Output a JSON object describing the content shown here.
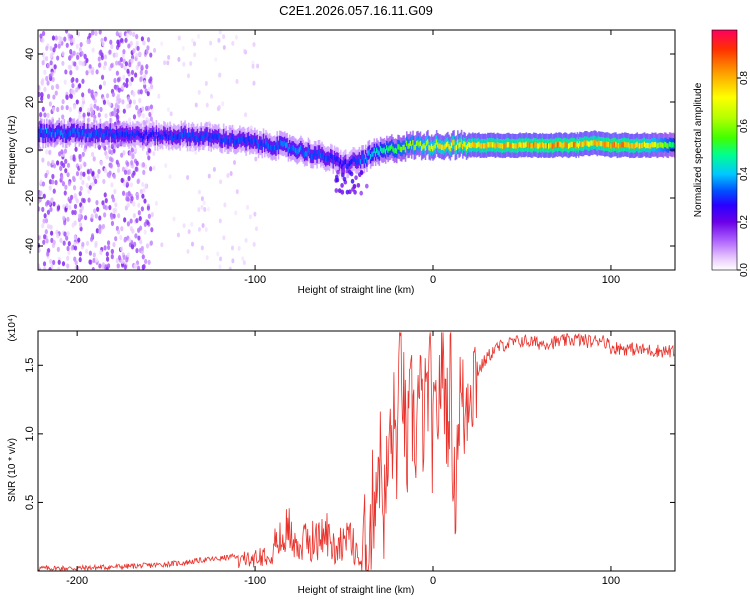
{
  "title": "C2E1.2026.057.16.11.G09",
  "chart_data": [
    {
      "type": "heatmap",
      "xlabel": "Height of straight line (km)",
      "ylabel": "Frequency (Hz)",
      "xlim": [
        -222,
        136
      ],
      "ylim": [
        -50,
        50
      ],
      "xticks": [
        -200,
        -100,
        0,
        100
      ],
      "yticks": [
        -40,
        -20,
        0,
        20,
        40
      ],
      "grid": false,
      "colorbar": {
        "label": "Normalized spectral amplitude",
        "range": [
          0,
          1
        ],
        "ticks": [
          0.0,
          0.2,
          0.4,
          0.6,
          0.8
        ],
        "colors": [
          "#ffffff",
          "#e8c8ff",
          "#b066ff",
          "#6a00e8",
          "#2a00ff",
          "#0050ff",
          "#00c8ff",
          "#00ff90",
          "#40ff00",
          "#b0ff00",
          "#ffff00",
          "#ffa000",
          "#ff3000",
          "#ff0060"
        ]
      },
      "ridge": {
        "x": [
          -222,
          -200,
          -180,
          -160,
          -140,
          -120,
          -100,
          -90,
          -80,
          -70,
          -60,
          -50,
          -45,
          -40,
          -35,
          -30,
          -20,
          -10,
          0,
          20,
          40,
          60,
          80,
          90,
          100,
          120,
          136
        ],
        "y": [
          7,
          7,
          7,
          6,
          6,
          5,
          3,
          2,
          1,
          -1,
          -3,
          -6,
          -5,
          -4,
          -2,
          -1,
          1,
          2,
          2,
          2,
          2,
          2,
          2,
          3,
          2,
          2,
          2
        ],
        "peak_amplitude": [
          0.45,
          0.42,
          0.4,
          0.35,
          0.4,
          0.4,
          0.4,
          0.42,
          0.45,
          0.42,
          0.4,
          0.35,
          0.35,
          0.45,
          0.5,
          0.55,
          0.65,
          0.72,
          0.8,
          0.85,
          0.88,
          0.9,
          0.9,
          0.85,
          0.92,
          0.85,
          0.6
        ]
      }
    },
    {
      "type": "line",
      "xlabel": "Height of straight line (km)",
      "ylabel": "SNR (10 * v/v)",
      "y_multiplier": "(x10⁴)",
      "xlim": [
        -222,
        136
      ],
      "ylim": [
        0,
        1.75
      ],
      "xticks": [
        -100,
        0,
        100,
        -200
      ],
      "yticks": [
        0.5,
        1.0,
        1.5
      ],
      "series": [
        {
          "color": "#e8322b",
          "x": [
            -222,
            -200,
            -180,
            -160,
            -150,
            -140,
            -130,
            -120,
            -110,
            -100,
            -95,
            -90,
            -85,
            -80,
            -75,
            -70,
            -65,
            -60,
            -55,
            -50,
            -45,
            -40,
            -35,
            -33,
            -30,
            -27,
            -25,
            -22,
            -20,
            -18,
            -15,
            -12,
            -10,
            -8,
            -5,
            -2,
            0,
            3,
            5,
            8,
            10,
            12,
            15,
            18,
            20,
            25,
            30,
            35,
            40,
            50,
            60,
            70,
            80,
            90,
            95,
            100,
            110,
            120,
            136
          ],
          "y": [
            0.02,
            0.02,
            0.03,
            0.04,
            0.05,
            0.06,
            0.08,
            0.09,
            0.11,
            0.13,
            0.18,
            0.25,
            0.32,
            0.45,
            0.22,
            0.35,
            0.3,
            0.4,
            0.22,
            0.35,
            0.28,
            0.05,
            0.3,
            0.6,
            0.85,
            0.4,
            0.85,
            1.05,
            0.9,
            1.68,
            0.8,
            1.2,
            0.95,
            1.3,
            1.05,
            1.45,
            0.9,
            1.25,
            1.55,
            1.15,
            1.4,
            0.5,
            1.3,
            1.1,
            1.4,
            1.45,
            1.55,
            1.62,
            1.65,
            1.68,
            1.66,
            1.67,
            1.69,
            1.67,
            1.7,
            1.63,
            1.62,
            1.61,
            1.6
          ]
        }
      ]
    }
  ]
}
